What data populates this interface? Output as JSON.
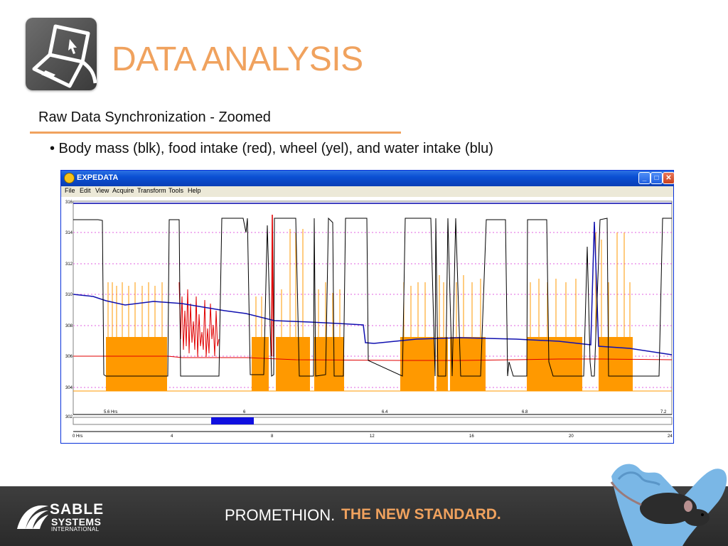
{
  "slide": {
    "title": "DATA ANALYSIS",
    "subtitle": "Raw Data Synchronization - Zoomed",
    "bullet": "• Body mass (blk), food intake (red), wheel (yel), and water intake (blu)"
  },
  "window": {
    "title": "EXPEDATA",
    "controls": {
      "minimize": "_",
      "maximize": "□",
      "close": "✕"
    },
    "menu": [
      "File",
      "Edit",
      "View",
      "Acquire",
      "Transform",
      "Tools",
      "Help"
    ]
  },
  "plot": {
    "y_ticks": [
      "316",
      "314",
      "312",
      "310",
      "308",
      "306",
      "304",
      "302"
    ],
    "x_ticks": [
      "5.6 Hrs",
      "6",
      "6.4",
      "6.8",
      "7.2"
    ],
    "overview_ticks": [
      "0 Hrs",
      "4",
      "8",
      "12",
      "16",
      "20",
      "24"
    ]
  },
  "footer": {
    "brand_line1": "SABLE",
    "brand_line2": "SYSTEMS",
    "brand_line3": "INTERNATIONAL",
    "tagline_part1": "PROMETHION.",
    "tagline_part2": "THE NEW STANDARD."
  },
  "colors": {
    "accent": "#f0a25e",
    "body_mass": "#000000",
    "food_intake": "#e00000",
    "wheel": "#ff9900",
    "water_intake": "#0000c0"
  },
  "icons": [
    "laptop-icon",
    "app-icon",
    "sable-logo-icon"
  ]
}
